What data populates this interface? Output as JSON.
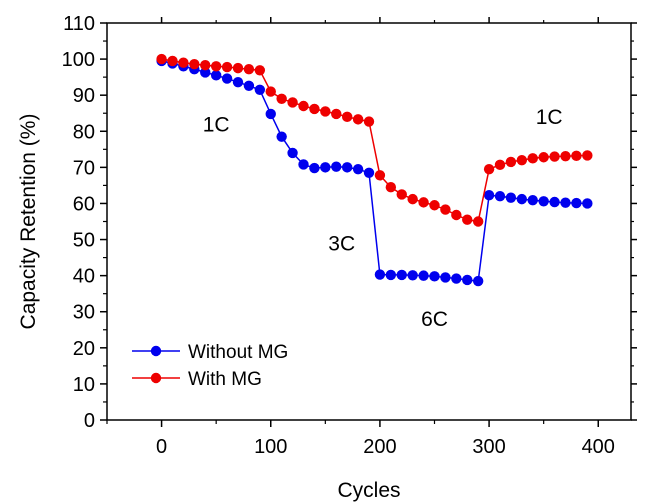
{
  "chart_data": {
    "type": "line",
    "xlabel": "Cycles",
    "ylabel": "Capacity Retention (%)",
    "xlim": [
      -50,
      430
    ],
    "ylim": [
      0,
      110
    ],
    "x_ticks": [
      "0",
      "100",
      "200",
      "300",
      "400"
    ],
    "y_ticks": [
      "0",
      "10",
      "20",
      "30",
      "40",
      "50",
      "60",
      "70",
      "80",
      "90",
      "100",
      "110"
    ],
    "legend_position": "bottom-left",
    "annotations": [
      {
        "text": "1C",
        "x": 50,
        "y": 80
      },
      {
        "text": "3C",
        "x": 165,
        "y": 47
      },
      {
        "text": "6C",
        "x": 250,
        "y": 26
      },
      {
        "text": "1C",
        "x": 355,
        "y": 82
      }
    ],
    "series": [
      {
        "name": "Without MG",
        "color": "#0000ee",
        "x": [
          0,
          10,
          20,
          30,
          40,
          50,
          60,
          70,
          80,
          90,
          100,
          110,
          120,
          130,
          140,
          150,
          160,
          170,
          180,
          190,
          200,
          210,
          220,
          230,
          240,
          250,
          260,
          270,
          280,
          290,
          300,
          310,
          320,
          330,
          340,
          350,
          360,
          370,
          380,
          390
        ],
        "y": [
          99.5,
          98.8,
          98.0,
          97.2,
          96.3,
          95.5,
          94.6,
          93.6,
          92.6,
          91.5,
          84.8,
          78.5,
          74.0,
          70.8,
          69.8,
          70.0,
          70.2,
          70.0,
          69.5,
          68.5,
          40.3,
          40.2,
          40.2,
          40.1,
          40.0,
          39.8,
          39.5,
          39.2,
          38.8,
          38.5,
          62.3,
          62.0,
          61.6,
          61.2,
          60.9,
          60.6,
          60.4,
          60.2,
          60.1,
          60.0
        ]
      },
      {
        "name": "With MG",
        "color": "#ee0000",
        "x": [
          0,
          10,
          20,
          30,
          40,
          50,
          60,
          70,
          80,
          90,
          100,
          110,
          120,
          130,
          140,
          150,
          160,
          170,
          180,
          190,
          200,
          210,
          220,
          230,
          240,
          250,
          260,
          270,
          280,
          290,
          300,
          310,
          320,
          330,
          340,
          350,
          360,
          370,
          380,
          390
        ],
        "y": [
          100.0,
          99.5,
          99.0,
          98.6,
          98.3,
          98.0,
          97.8,
          97.5,
          97.2,
          96.9,
          91.0,
          89.0,
          88.0,
          87.0,
          86.2,
          85.5,
          84.8,
          84.0,
          83.3,
          82.7,
          67.8,
          64.5,
          62.5,
          61.2,
          60.3,
          59.5,
          58.3,
          56.8,
          55.5,
          55.0,
          69.5,
          70.7,
          71.5,
          72.0,
          72.5,
          72.8,
          73.0,
          73.1,
          73.2,
          73.3
        ]
      }
    ]
  }
}
